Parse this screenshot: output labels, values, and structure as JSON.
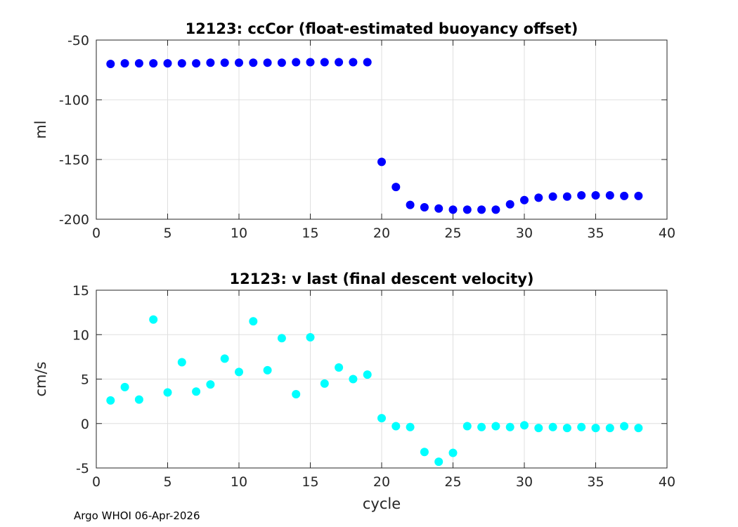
{
  "footer": "Argo WHOI 06-Apr-2026",
  "chart_data": [
    {
      "type": "scatter",
      "title": "12123: ccCor (float-estimated buoyancy offset)",
      "xlabel": "",
      "ylabel": "ml",
      "xlim": [
        0,
        40
      ],
      "ylim": [
        -200,
        -50
      ],
      "xticks": [
        0,
        5,
        10,
        15,
        20,
        25,
        30,
        35,
        40
      ],
      "yticks": [
        -200,
        -150,
        -100,
        -50
      ],
      "grid": true,
      "color": "#0000ff",
      "x": [
        1,
        2,
        3,
        4,
        5,
        6,
        7,
        8,
        9,
        10,
        11,
        12,
        13,
        14,
        15,
        16,
        17,
        18,
        19,
        20,
        21,
        22,
        23,
        24,
        25,
        26,
        27,
        28,
        29,
        30,
        31,
        32,
        33,
        34,
        35,
        36,
        37,
        38
      ],
      "y": [
        -70,
        -69.5,
        -69.5,
        -69.5,
        -69.5,
        -69.5,
        -69.5,
        -69,
        -69,
        -69,
        -69,
        -69,
        -69,
        -68.5,
        -68.5,
        -68.5,
        -68.5,
        -68.5,
        -68.5,
        -152,
        -173,
        -188,
        -190,
        -191,
        -192,
        -192,
        -192,
        -192,
        -187.5,
        -184,
        -182,
        -181,
        -181,
        -180,
        -180,
        -180,
        -180.5,
        -180.5
      ]
    },
    {
      "type": "scatter",
      "title": "12123: v last (final descent velocity)",
      "xlabel": "cycle",
      "ylabel": "cm/s",
      "xlim": [
        0,
        40
      ],
      "ylim": [
        -5,
        15
      ],
      "xticks": [
        0,
        5,
        10,
        15,
        20,
        25,
        30,
        35,
        40
      ],
      "yticks": [
        -5,
        0,
        5,
        10,
        15
      ],
      "grid": true,
      "color": "#00ffff",
      "x": [
        1,
        2,
        3,
        4,
        5,
        6,
        7,
        8,
        9,
        10,
        11,
        12,
        13,
        14,
        15,
        16,
        17,
        18,
        19,
        20,
        21,
        22,
        23,
        24,
        25,
        26,
        27,
        28,
        29,
        30,
        31,
        32,
        33,
        34,
        35,
        36,
        37,
        38
      ],
      "y": [
        2.6,
        4.1,
        2.7,
        11.7,
        3.5,
        6.9,
        3.6,
        4.4,
        7.3,
        5.8,
        11.5,
        6.0,
        9.6,
        3.3,
        9.7,
        4.5,
        6.3,
        5.0,
        5.5,
        0.6,
        -0.3,
        -0.4,
        -3.2,
        -4.3,
        -3.3,
        -0.3,
        -0.4,
        -0.3,
        -0.4,
        -0.2,
        -0.5,
        -0.4,
        -0.5,
        -0.4,
        -0.5,
        -0.5,
        -0.3,
        -0.5
      ]
    }
  ]
}
